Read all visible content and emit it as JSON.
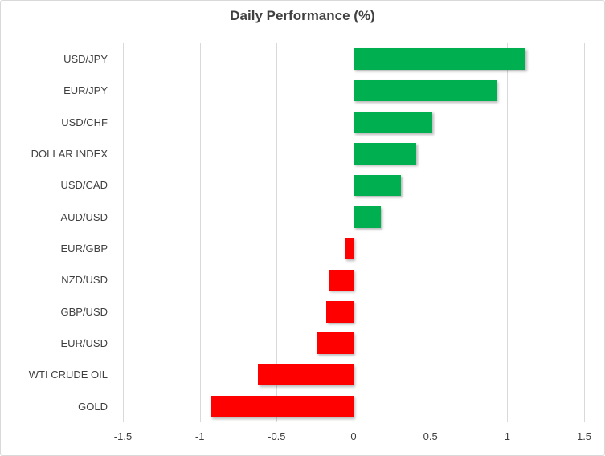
{
  "chart_data": {
    "type": "bar",
    "orientation": "horizontal",
    "title": "Daily Performance (%)",
    "categories": [
      "USD/JPY",
      "EUR/JPY",
      "USD/CHF",
      "DOLLAR INDEX",
      "USD/CAD",
      "AUD/USD",
      "EUR/GBP",
      "NZD/USD",
      "GBP/USD",
      "EUR/USD",
      "WTI CRUDE OIL",
      "GOLD"
    ],
    "values": [
      1.12,
      0.93,
      0.51,
      0.41,
      0.31,
      0.18,
      -0.06,
      -0.16,
      -0.18,
      -0.24,
      -0.62,
      -0.93
    ],
    "xlabel": "",
    "ylabel": "",
    "xlim": [
      -1.5,
      1.5
    ],
    "xticks": [
      -1.5,
      -1,
      -0.5,
      0,
      0.5,
      1,
      1.5
    ],
    "xtick_labels": [
      "-1.5",
      "-1",
      "-0.5",
      "0",
      "0.5",
      "1",
      "1.5"
    ],
    "grid": true,
    "legend": false,
    "colors": {
      "positive_bar": "#00B050",
      "negative_bar": "#FF0000",
      "gridline": "#D9D9D9",
      "zero_axis": "#BFBFBF",
      "text": "#404040"
    }
  }
}
